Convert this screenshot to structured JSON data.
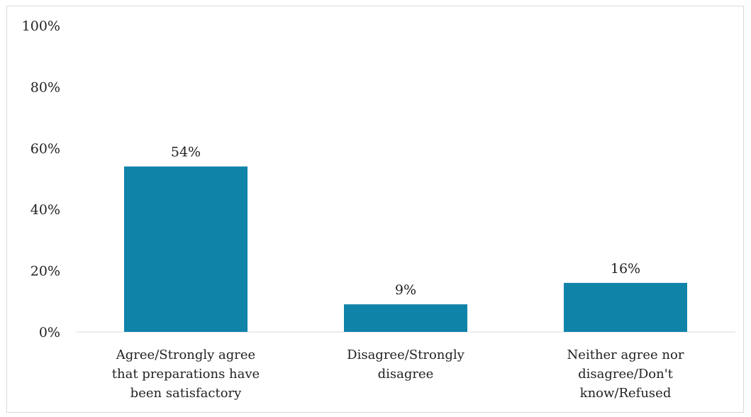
{
  "chart_data": {
    "type": "bar",
    "categories": [
      [
        "Agree/Strongly agree",
        "that preparations have",
        "been satisfactory"
      ],
      [
        "Disagree/Strongly",
        "disagree"
      ],
      [
        "Neither agree nor",
        "disagree/Don't",
        "know/Refused"
      ]
    ],
    "values": [
      54,
      9,
      16
    ],
    "data_labels": [
      "54%",
      "9%",
      "16%"
    ],
    "y_ticks": [
      "0%",
      "20%",
      "40%",
      "60%",
      "80%",
      "100%"
    ],
    "ylim": [
      0,
      100
    ],
    "grid": false,
    "bar_color": "#1083a9",
    "title": "",
    "xlabel": "",
    "ylabel": ""
  }
}
